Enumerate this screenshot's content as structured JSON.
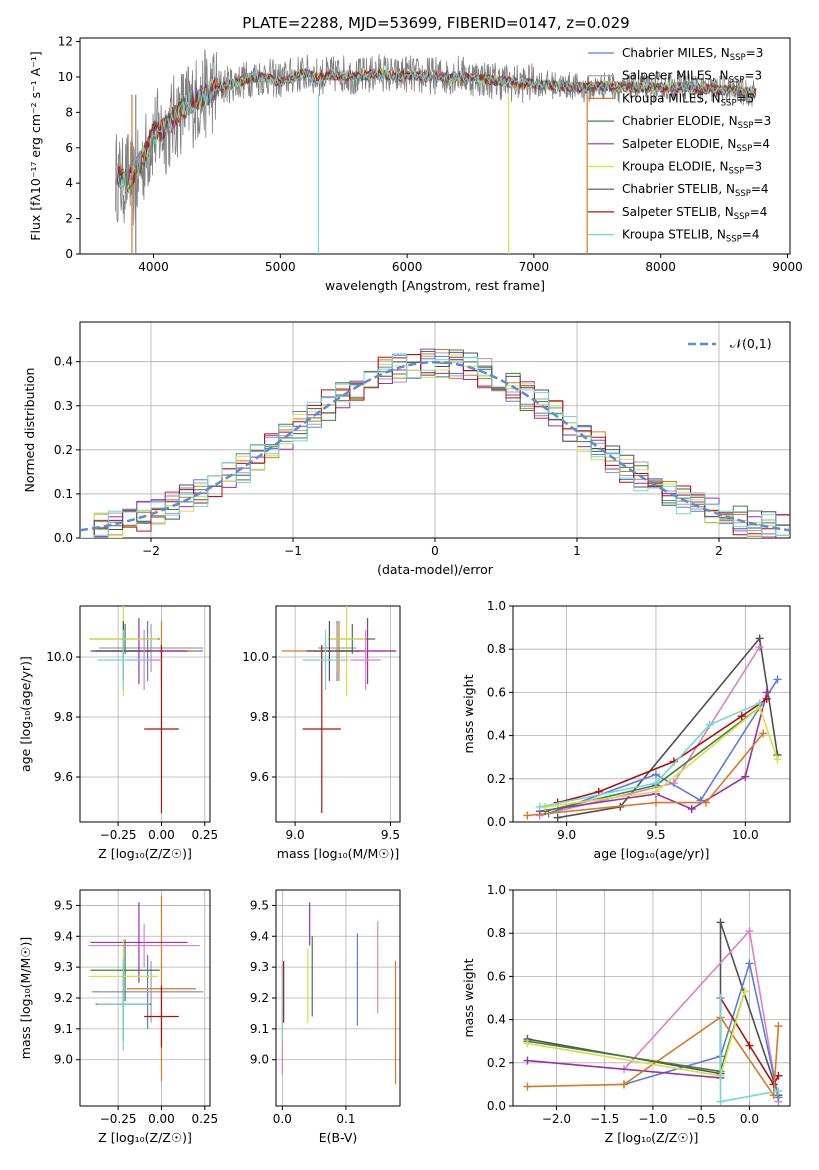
{
  "title": "PLATE=2288, MJD=53699, FIBERID=0147, z=0.029",
  "series_legend": [
    {
      "name": "Chabrier MILES",
      "nssp": "3",
      "color": "#5b7fd6"
    },
    {
      "name": "Salpeter MILES",
      "nssp": "3",
      "color": "#a0a0a0"
    },
    {
      "name": "Kroupa MILES",
      "nssp": "5",
      "color": "#d87a20"
    },
    {
      "name": "Chabrier ELODIE",
      "nssp": "3",
      "color": "#3f7f3f"
    },
    {
      "name": "Salpeter ELODIE",
      "nssp": "4",
      "color": "#9a2fb0"
    },
    {
      "name": "Kroupa ELODIE",
      "nssp": "3",
      "color": "#d8e040"
    },
    {
      "name": "Chabrier STELIB",
      "nssp": "4",
      "color": "#505050"
    },
    {
      "name": "Salpeter STELIB",
      "nssp": "4",
      "color": "#b01010"
    },
    {
      "name": "Kroupa STELIB",
      "nssp": "4",
      "color": "#70d8d8"
    }
  ],
  "nssp_prefix": "N",
  "nssp_sub": "SSP",
  "chart_data": [
    {
      "id": "spectrum",
      "type": "line",
      "xlabel": "wavelength [Angstrom, rest frame]",
      "ylabel": "Flux [fλ10⁻¹⁷ erg cm⁻² s⁻¹ A⁻¹]",
      "xlim": [
        3420,
        9020
      ],
      "ylim": [
        0,
        12.2
      ],
      "xticks": [
        4000,
        5000,
        6000,
        7000,
        8000,
        9000
      ],
      "yticks": [
        0,
        2,
        4,
        6,
        8,
        10,
        12
      ],
      "data_color": "#808080",
      "data_x": [
        3700,
        3750,
        3800,
        3850,
        3900,
        3950,
        4000,
        4100,
        4200,
        4300,
        4400,
        4500,
        4600,
        4700,
        4800,
        4900,
        5000,
        5100,
        5200,
        5300,
        5400,
        5500,
        5600,
        5700,
        5800,
        5900,
        6000,
        6100,
        6200,
        6300,
        6400,
        6500,
        6600,
        6700,
        6800,
        6900,
        7000,
        7100,
        7200,
        7300,
        7400,
        7500,
        7600,
        7700,
        7800,
        7900,
        8000,
        8100,
        8200,
        8300,
        8400,
        8500,
        8600,
        8700,
        8750
      ],
      "data_y": [
        4.5,
        4.0,
        4.5,
        3.8,
        5.0,
        5.8,
        6.8,
        7.0,
        8.0,
        8.5,
        9.0,
        9.4,
        9.6,
        9.8,
        10.0,
        10.0,
        9.8,
        10.1,
        10.2,
        10.0,
        10.1,
        10.2,
        10.0,
        10.1,
        10.3,
        10.0,
        10.2,
        10.0,
        10.1,
        10.0,
        10.2,
        10.0,
        9.9,
        9.8,
        9.7,
        9.6,
        9.7,
        9.6,
        9.5,
        9.5,
        9.3,
        9.4,
        9.6,
        9.2,
        9.5,
        9.3,
        9.4,
        9.5,
        9.5,
        9.4,
        9.3,
        9.3,
        9.2,
        9.1,
        9.1
      ],
      "model_x": [
        3700,
        3800,
        3900,
        4000,
        4100,
        4200,
        4300,
        4400,
        4500,
        4600,
        4700,
        4800,
        4900,
        5000,
        5100,
        5200,
        5300,
        5400,
        5500,
        5600,
        5700,
        5800,
        5900,
        6000,
        6200,
        6400,
        6600,
        6800,
        7000,
        7200,
        7400,
        7600,
        7800,
        8000,
        8200,
        8400,
        8600,
        8750
      ],
      "model_y": [
        4.6,
        4.0,
        5.2,
        6.8,
        7.2,
        8.0,
        8.6,
        9.0,
        9.3,
        9.6,
        9.8,
        10.0,
        9.9,
        9.7,
        10.0,
        10.2,
        9.9,
        10.1,
        10.1,
        10.0,
        10.1,
        10.2,
        10.0,
        10.1,
        10.0,
        10.0,
        9.9,
        9.7,
        9.6,
        9.5,
        9.4,
        9.5,
        9.4,
        9.4,
        9.4,
        9.3,
        9.2,
        9.1
      ]
    },
    {
      "id": "residual-hist",
      "type": "line",
      "xlabel": "(data-model)/error",
      "ylabel": "Normed distribution",
      "xlim": [
        -2.5,
        2.5
      ],
      "ylim": [
        0,
        0.49
      ],
      "xticks": [
        -2,
        -1,
        0,
        1,
        2
      ],
      "yticks": [
        0.0,
        0.1,
        0.2,
        0.3,
        0.4
      ],
      "legend": "𝒩(0,1)",
      "bin_width": 0.1
    },
    {
      "id": "age-vs-Z",
      "type": "scatter",
      "xlabel": "Z [log₁₀(Z/Z☉)]",
      "ylabel": "age  [log₁₀(age/yr)]",
      "xlim": [
        -0.47,
        0.28
      ],
      "ylim": [
        9.45,
        10.17
      ],
      "xticks": [
        -0.25,
        0.0,
        0.25
      ],
      "yticks": [
        9.6,
        9.8,
        10.0
      ],
      "points": [
        {
          "x": -0.08,
          "y": 10.02,
          "xerr": 0.32,
          "yerr": 0.1,
          "color": "#5b7fd6"
        },
        {
          "x": -0.06,
          "y": 10.03,
          "xerr": 0.3,
          "yerr": 0.08,
          "color": "#a0a0a0"
        },
        {
          "x": 0.0,
          "y": 10.02,
          "xerr": 0.2,
          "yerr": 0.1,
          "color": "#d87a20"
        },
        {
          "x": -0.21,
          "y": 10.06,
          "xerr": 0.2,
          "yerr": 0.05,
          "color": "#3f7f3f"
        },
        {
          "x": -0.13,
          "y": 10.02,
          "xerr": 0.28,
          "yerr": 0.11,
          "color": "#9a2fb0"
        },
        {
          "x": -0.22,
          "y": 10.06,
          "xerr": 0.2,
          "yerr": 0.19,
          "color": "#d8e040"
        },
        {
          "x": -0.22,
          "y": 10.02,
          "xerr": 0.16,
          "yerr": 0.1,
          "color": "#505050"
        },
        {
          "x": 0.0,
          "y": 9.76,
          "xerr": 0.1,
          "yerr": 0.28,
          "color": "#b01010"
        },
        {
          "x": -0.1,
          "y": 9.99,
          "xerr": 0.1,
          "yerr": 0.1,
          "color": "#e080c0"
        },
        {
          "x": -0.22,
          "y": 9.99,
          "xerr": 0.15,
          "yerr": 0.1,
          "color": "#70d8d8"
        }
      ]
    },
    {
      "id": "age-vs-mass",
      "type": "scatter",
      "xlabel": "mass [log₁₀(M/M☉)]",
      "ylabel": "",
      "xlim": [
        8.9,
        9.55
      ],
      "ylim": [
        9.45,
        10.17
      ],
      "xticks": [
        9.0,
        9.5
      ],
      "yticks": [
        9.6,
        9.8,
        10.0
      ],
      "points": [
        {
          "x": 9.22,
          "y": 10.02,
          "xerr": 0.12,
          "yerr": 0.1,
          "color": "#5b7fd6"
        },
        {
          "x": 9.22,
          "y": 10.03,
          "xerr": 0.1,
          "yerr": 0.08,
          "color": "#a0a0a0"
        },
        {
          "x": 9.23,
          "y": 10.02,
          "xerr": 0.3,
          "yerr": 0.1,
          "color": "#d87a20"
        },
        {
          "x": 9.3,
          "y": 10.06,
          "xerr": 0.12,
          "yerr": 0.05,
          "color": "#3f7f3f"
        },
        {
          "x": 9.38,
          "y": 10.02,
          "xerr": 0.15,
          "yerr": 0.11,
          "color": "#9a2fb0"
        },
        {
          "x": 9.27,
          "y": 10.06,
          "xerr": 0.1,
          "yerr": 0.19,
          "color": "#d8e040"
        },
        {
          "x": 9.18,
          "y": 10.02,
          "xerr": 0.12,
          "yerr": 0.1,
          "color": "#505050"
        },
        {
          "x": 9.14,
          "y": 9.76,
          "xerr": 0.1,
          "yerr": 0.28,
          "color": "#b01010"
        },
        {
          "x": 9.37,
          "y": 9.99,
          "xerr": 0.08,
          "yerr": 0.1,
          "color": "#e080c0"
        },
        {
          "x": 9.16,
          "y": 9.99,
          "xerr": 0.12,
          "yerr": 0.1,
          "color": "#70d8d8"
        }
      ]
    },
    {
      "id": "massweight-vs-age",
      "type": "line",
      "xlabel": "age  [log₁₀(age/yr)]",
      "ylabel": "mass weight",
      "xlim": [
        8.7,
        10.25
      ],
      "ylim": [
        0.0,
        1.0
      ],
      "xticks": [
        9.0,
        9.5,
        10.0
      ],
      "yticks": [
        0.0,
        0.2,
        0.4,
        0.6,
        0.8,
        1.0
      ],
      "series": [
        {
          "color": "#505050",
          "x": [
            8.95,
            9.3,
            10.08,
            10.18
          ],
          "y": [
            0.02,
            0.07,
            0.85,
            0.31
          ]
        },
        {
          "color": "#e080c0",
          "x": [
            8.85,
            9.6,
            10.08
          ],
          "y": [
            0.03,
            0.18,
            0.81
          ]
        },
        {
          "color": "#5b7fd6",
          "x": [
            8.9,
            9.5,
            9.75,
            10.18
          ],
          "y": [
            0.04,
            0.22,
            0.1,
            0.66
          ]
        },
        {
          "color": "#9a2fb0",
          "x": [
            8.85,
            9.5,
            9.7,
            10.0,
            10.12
          ],
          "y": [
            0.05,
            0.13,
            0.06,
            0.21,
            0.6
          ]
        },
        {
          "color": "#b01010",
          "x": [
            8.95,
            9.18,
            9.6,
            9.98,
            10.12
          ],
          "y": [
            0.09,
            0.14,
            0.28,
            0.49,
            0.57
          ]
        },
        {
          "color": "#d87a20",
          "x": [
            8.78,
            9.5,
            9.78,
            10.1
          ],
          "y": [
            0.03,
            0.09,
            0.09,
            0.41
          ]
        },
        {
          "color": "#3f7f3f",
          "x": [
            8.88,
            9.5,
            10.08
          ],
          "y": [
            0.05,
            0.17,
            0.53
          ]
        },
        {
          "color": "#d8e040",
          "x": [
            8.88,
            9.5,
            10.08,
            10.18
          ],
          "y": [
            0.07,
            0.14,
            0.53,
            0.29
          ]
        },
        {
          "color": "#70d8d8",
          "x": [
            8.85,
            9.5,
            9.8,
            10.08
          ],
          "y": [
            0.07,
            0.18,
            0.45,
            0.55
          ]
        }
      ]
    },
    {
      "id": "mass-vs-Z",
      "type": "scatter",
      "xlabel": "Z [log₁₀(Z/Z☉)]",
      "ylabel": "mass [log₁₀(M/M☉)]",
      "xlim": [
        -0.47,
        0.28
      ],
      "ylim": [
        8.85,
        9.55
      ],
      "xticks": [
        -0.25,
        0.0,
        0.25
      ],
      "yticks": [
        9.0,
        9.1,
        9.2,
        9.3,
        9.4,
        9.5
      ],
      "points": [
        {
          "x": -0.08,
          "y": 9.22,
          "xerr": 0.32,
          "yerr": 0.12,
          "color": "#5b7fd6"
        },
        {
          "x": -0.06,
          "y": 9.22,
          "xerr": 0.3,
          "yerr": 0.1,
          "color": "#a0a0a0"
        },
        {
          "x": 0.0,
          "y": 9.23,
          "xerr": 0.2,
          "yerr": 0.3,
          "color": "#d87a20"
        },
        {
          "x": -0.21,
          "y": 9.29,
          "xerr": 0.2,
          "yerr": 0.1,
          "color": "#3f7f3f"
        },
        {
          "x": -0.13,
          "y": 9.38,
          "xerr": 0.28,
          "yerr": 0.13,
          "color": "#9a2fb0"
        },
        {
          "x": -0.22,
          "y": 9.27,
          "xerr": 0.2,
          "yerr": 0.12,
          "color": "#d8e040"
        },
        {
          "x": -0.22,
          "y": 9.18,
          "xerr": 0.16,
          "yerr": 0.12,
          "color": "#505050"
        },
        {
          "x": 0.0,
          "y": 9.14,
          "xerr": 0.1,
          "yerr": 0.1,
          "color": "#b01010"
        },
        {
          "x": -0.1,
          "y": 9.37,
          "xerr": 0.32,
          "yerr": 0.07,
          "color": "#e080c0"
        },
        {
          "x": -0.22,
          "y": 9.18,
          "xerr": 0.15,
          "yerr": 0.15,
          "color": "#70d8d8"
        }
      ]
    },
    {
      "id": "mass-vs-ebv",
      "type": "scatter",
      "xlabel": "E(B-V)",
      "ylabel": "",
      "xlim": [
        -0.01,
        0.185
      ],
      "ylim": [
        8.85,
        9.55
      ],
      "xticks": [
        0.0,
        0.1
      ],
      "yticks": [
        9.0,
        9.1,
        9.2,
        9.3,
        9.4,
        9.5
      ],
      "points": [
        {
          "x": 0.0,
          "y": 9.13,
          "yerr": 0.18,
          "color": "#e080c0"
        },
        {
          "x": 0.0,
          "y": 9.18,
          "yerr": 0.12,
          "color": "#70d8d8"
        },
        {
          "x": 0.002,
          "y": 9.22,
          "yerr": 0.1,
          "color": "#b01010"
        },
        {
          "x": 0.04,
          "y": 9.24,
          "yerr": 0.12,
          "color": "#d8e040"
        },
        {
          "x": 0.043,
          "y": 9.44,
          "yerr": 0.07,
          "color": "#9a2fb0"
        },
        {
          "x": 0.047,
          "y": 9.27,
          "yerr": 0.13,
          "color": "#3f7f3f"
        },
        {
          "x": 0.118,
          "y": 9.26,
          "yerr": 0.15,
          "color": "#5b7fd6"
        },
        {
          "x": 0.15,
          "y": 9.3,
          "yerr": 0.15,
          "color": "#e080c0"
        },
        {
          "x": 0.178,
          "y": 9.12,
          "yerr": 0.2,
          "color": "#d87a20"
        }
      ]
    },
    {
      "id": "massweight-vs-Z",
      "type": "line",
      "xlabel": "Z [log₁₀(Z/Z☉)]",
      "ylabel": "mass weight",
      "xlim": [
        -2.45,
        0.42
      ],
      "ylim": [
        0.0,
        1.0
      ],
      "xticks": [
        -2.0,
        -1.5,
        -1.0,
        -0.5,
        0.0
      ],
      "yticks": [
        0.0,
        0.2,
        0.4,
        0.6,
        0.8,
        1.0
      ],
      "series": [
        {
          "color": "#505050",
          "x": [
            -2.3,
            -0.3,
            -0.3,
            0.3
          ],
          "y": [
            0.31,
            0.15,
            0.85,
            0.05
          ]
        },
        {
          "color": "#e080c0",
          "x": [
            -1.3,
            0.0,
            0.3
          ],
          "y": [
            0.17,
            0.81,
            0.02
          ]
        },
        {
          "color": "#5b7fd6",
          "x": [
            -1.3,
            -0.3,
            0.0,
            0.3
          ],
          "y": [
            0.1,
            0.23,
            0.66,
            0.04
          ]
        },
        {
          "color": "#9a2fb0",
          "x": [
            -2.3,
            -0.3,
            -0.3
          ],
          "y": [
            0.21,
            0.13,
            0.5
          ]
        },
        {
          "color": "#b01010",
          "x": [
            -0.3,
            0.0,
            0.25,
            0.3
          ],
          "y": [
            0.5,
            0.28,
            0.1,
            0.14
          ]
        },
        {
          "color": "#d87a20",
          "x": [
            -2.3,
            -1.3,
            -0.3,
            0.25,
            0.3
          ],
          "y": [
            0.09,
            0.1,
            0.41,
            0.05,
            0.37
          ]
        },
        {
          "color": "#3f7f3f",
          "x": [
            -2.3,
            -0.3,
            -0.05
          ],
          "y": [
            0.3,
            0.16,
            0.53
          ]
        },
        {
          "color": "#d8e040",
          "x": [
            -2.3,
            -0.3,
            -0.05
          ],
          "y": [
            0.29,
            0.14,
            0.53
          ]
        },
        {
          "color": "#70d8d8",
          "x": [
            -0.3,
            -0.3,
            0.3
          ],
          "y": [
            0.5,
            0.02,
            0.07
          ]
        }
      ]
    }
  ]
}
